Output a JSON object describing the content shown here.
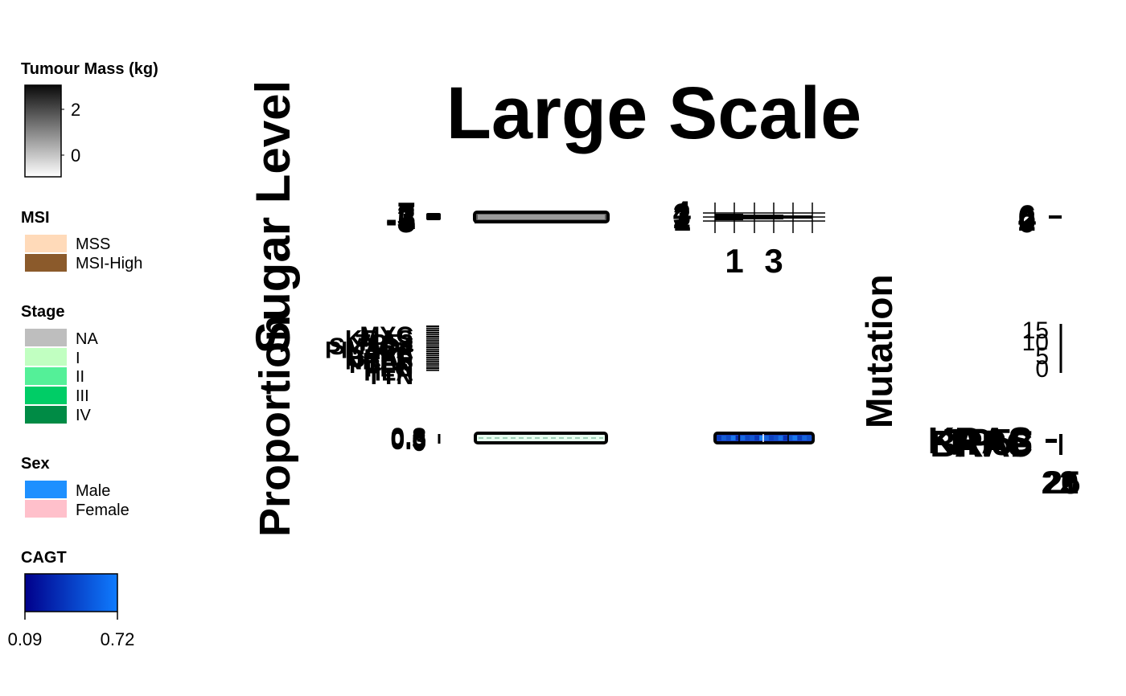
{
  "chart_data": {
    "type": "heatmap",
    "title": "Large Scale",
    "row_labels": {
      "sugar_level": "Sugar Level",
      "proportion": "Proportion",
      "mutation": "Mutation"
    },
    "legends": {
      "tumour_mass": {
        "title": "Tumour Mass (kg)",
        "ticks": [
          "2",
          "0"
        ],
        "color_low": "#ffffff",
        "color_high": "#0a0a0a"
      },
      "msi": {
        "title": "MSI",
        "entries": [
          {
            "label": "MSS",
            "color": "#ffdab9"
          },
          {
            "label": "MSI-High",
            "color": "#8b5a2b"
          }
        ]
      },
      "stage": {
        "title": "Stage",
        "entries": [
          {
            "label": "NA",
            "color": "#bebebe"
          },
          {
            "label": "I",
            "color": "#c1ffc1"
          },
          {
            "label": "II",
            "color": "#54f098"
          },
          {
            "label": "III",
            "color": "#00cd66"
          },
          {
            "label": "IV",
            "color": "#008b45"
          }
        ]
      },
      "sex": {
        "title": "Sex",
        "entries": [
          {
            "label": "Male",
            "color": "#1e90ff"
          },
          {
            "label": "Female",
            "color": "#ffc0cb"
          }
        ]
      },
      "cagt": {
        "title": "CAGT",
        "ticks": [
          "0.09",
          "0.72"
        ],
        "color_low": "#00008b",
        "color_high": "#1e90ff"
      }
    },
    "panels": {
      "top_left_ticks": [
        "-5",
        "-3",
        "1",
        "3",
        "7"
      ],
      "top_mid_ticks": [
        "1",
        "2",
        "3",
        "4"
      ],
      "top_mid_xticks": [
        "1",
        "3"
      ],
      "top_right_ticks": [
        "0",
        "2",
        "4",
        "6"
      ],
      "gene_labels": [
        "MYC",
        "KRAS",
        "TP53",
        "SMAD4",
        "PIK3CA",
        "APC",
        "BRAF",
        "NRAS",
        "PTEN",
        "FLG",
        "HLA",
        "TTN"
      ],
      "mid_right_ticks": [
        "15",
        "10",
        "5",
        "0"
      ],
      "bottom_left_ticks": [
        "0",
        "0.3",
        "0.6",
        "0.8"
      ],
      "bottom_right_genes": [
        "APC",
        "TP53",
        "KRAS",
        "BRAF"
      ],
      "bottom_right_counts": [
        "20",
        "25",
        "22",
        "21"
      ]
    },
    "cagt_bar": {
      "values": [
        0.35,
        0.5,
        0.42,
        0.61,
        0.28,
        0.55,
        0.4,
        0.47,
        0.33,
        0.66,
        0.52,
        0.38,
        0.44,
        0.58,
        0.3,
        0.49,
        0.62,
        0.36,
        0.53,
        0.45
      ],
      "range": [
        0.09,
        0.72
      ]
    }
  }
}
